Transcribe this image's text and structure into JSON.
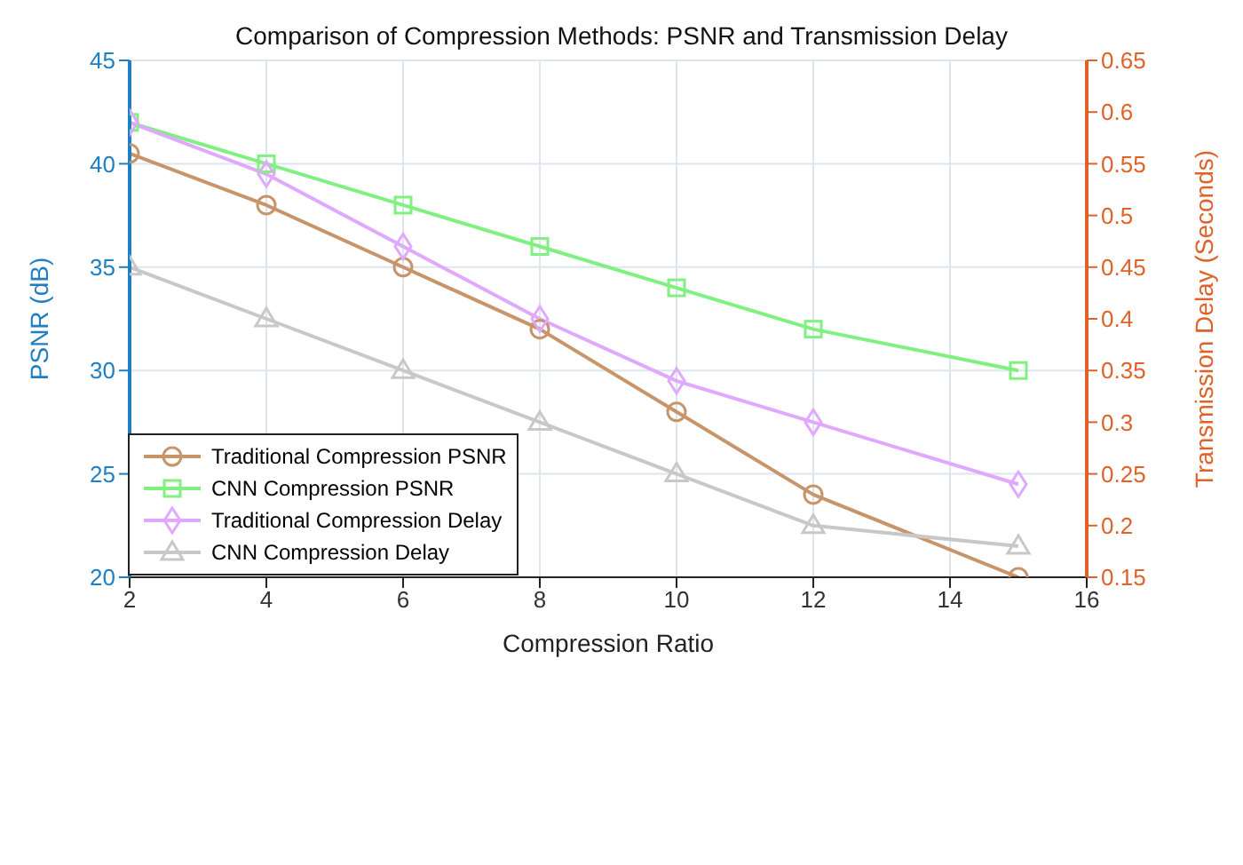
{
  "chart_data": {
    "type": "line",
    "title": "Comparison of Compression Methods: PSNR and Transmission Delay",
    "xlabel": "Compression Ratio",
    "ylabel": "PSNR (dB)",
    "y2label": "Transmission Delay (Seconds)",
    "x": [
      2,
      4,
      6,
      8,
      10,
      12,
      15
    ],
    "series": [
      {
        "name": "Traditional Compression PSNR",
        "color": "#c8956b",
        "marker": "circle",
        "values": [
          40.5,
          38,
          35,
          32,
          28,
          24,
          20
        ]
      },
      {
        "name": "CNN Compression PSNR",
        "color": "#80f080",
        "marker": "square",
        "values": [
          42,
          40,
          38,
          36,
          34,
          32,
          30
        ]
      },
      {
        "name": "Traditional Compression Delay",
        "color": "#e0a8ff",
        "marker": "diamond",
        "axis": "y2",
        "values": [
          0.59,
          0.54,
          0.47,
          0.4,
          0.34,
          0.3,
          0.24
        ]
      },
      {
        "name": "CNN Compression Delay",
        "color": "#c8c8c8",
        "marker": "triangle",
        "axis": "y2",
        "values": [
          0.45,
          0.4,
          0.35,
          0.3,
          0.25,
          0.2,
          0.18
        ]
      }
    ],
    "xlim": [
      2,
      16
    ],
    "xticks": [
      2,
      4,
      6,
      8,
      10,
      12,
      14,
      16
    ],
    "ylim": [
      20,
      45
    ],
    "yticks": [
      20,
      25,
      30,
      35,
      40,
      45
    ],
    "y2lim": [
      0.15,
      0.65
    ],
    "y2ticks": [
      0.15,
      0.2,
      0.25,
      0.3,
      0.35,
      0.4,
      0.45,
      0.5,
      0.55,
      0.6,
      0.65
    ],
    "grid": true,
    "legend": "bottom left",
    "line_style": "solid"
  }
}
